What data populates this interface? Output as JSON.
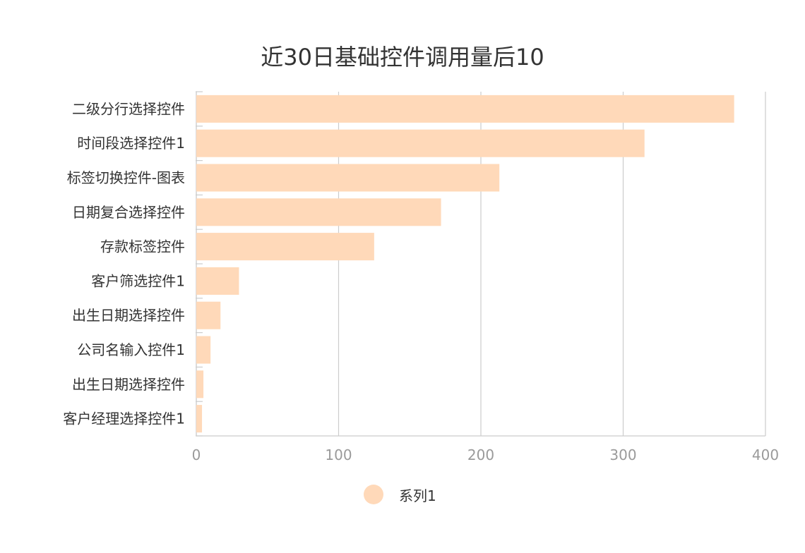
{
  "chart_data": {
    "type": "bar",
    "orientation": "horizontal",
    "title": "近30日基础控件调用量后10",
    "categories": [
      "二级分行选择控件",
      "时间段选择控件1",
      "标签切换控件-图表",
      "日期复合选择控件",
      "存款标签控件",
      "客户筛选控件1",
      "出生日期选择控件",
      "公司名输入控件1",
      "出生日期选择控件",
      "客户经理选择控件1"
    ],
    "series": [
      {
        "name": "系列1",
        "values": [
          378,
          315,
          213,
          172,
          125,
          30,
          17,
          10,
          5,
          4
        ]
      }
    ],
    "xlim": [
      0,
      400
    ],
    "xticks": [
      "0",
      "100",
      "200",
      "300",
      "400"
    ],
    "grid": true,
    "legend_position": "bottom",
    "color": "#ffd9b9"
  }
}
